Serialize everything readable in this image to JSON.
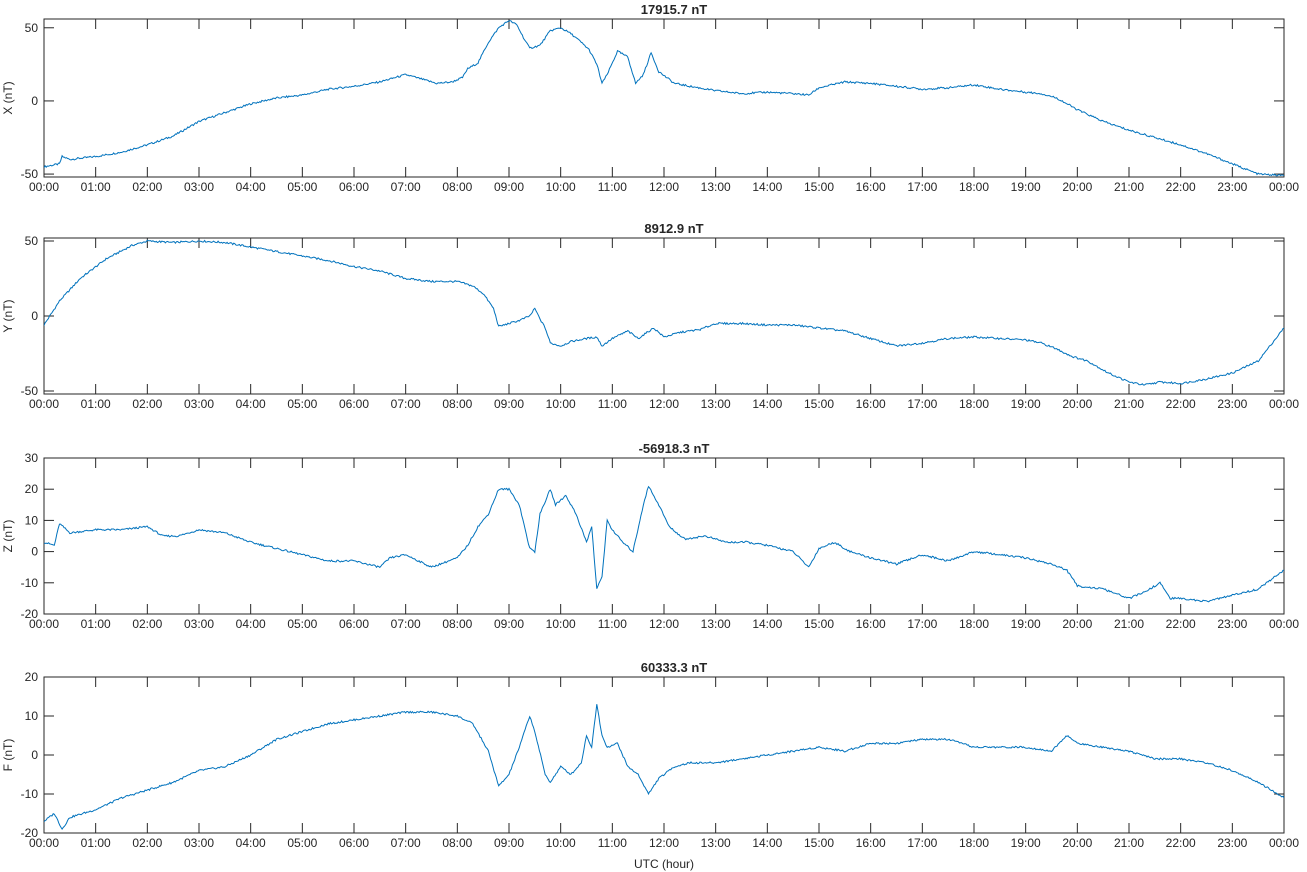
{
  "chart_data": [
    {
      "type": "line",
      "title": "17915.7 nT",
      "xlabel": "",
      "ylabel": "X (nT)",
      "xlim": [
        0,
        24
      ],
      "ylim": [
        -52,
        56
      ],
      "yticks": [
        -50,
        0,
        50
      ],
      "xticklabels": [
        "00:00",
        "01:00",
        "02:00",
        "03:00",
        "04:00",
        "05:00",
        "06:00",
        "07:00",
        "08:00",
        "09:00",
        "10:00",
        "11:00",
        "12:00",
        "13:00",
        "14:00",
        "15:00",
        "16:00",
        "17:00",
        "18:00",
        "19:00",
        "20:00",
        "21:00",
        "22:00",
        "23:00",
        "00:00"
      ],
      "grid": false,
      "color": "#0072BD",
      "series": [
        {
          "x": [
            0,
            0.3,
            0.35,
            0.5,
            1,
            1.5,
            2,
            2.5,
            3,
            3.5,
            4,
            4.5,
            5,
            5.5,
            6,
            6.5,
            7,
            7.3,
            7.6,
            7.9,
            8.1,
            8.2,
            8.4,
            8.6,
            8.8,
            9.0,
            9.15,
            9.3,
            9.4,
            9.6,
            9.8,
            10.0,
            10.2,
            10.4,
            10.55,
            10.7,
            10.8,
            10.9,
            11.1,
            11.3,
            11.45,
            11.6,
            11.75,
            11.9,
            12.2,
            12.5,
            13,
            13.5,
            14,
            14.5,
            14.8,
            15,
            15.5,
            16,
            16.5,
            17,
            17.5,
            18,
            18.5,
            19,
            19.3,
            19.6,
            20,
            20.5,
            21,
            21.5,
            22,
            22.5,
            23,
            23.5,
            24
          ],
          "y": [
            -45,
            -43,
            -38,
            -40,
            -38,
            -35,
            -30,
            -24,
            -14,
            -8,
            -2,
            2,
            4,
            8,
            10,
            13,
            18,
            15,
            12,
            13,
            16,
            22,
            26,
            40,
            50,
            55,
            52,
            42,
            36,
            38,
            48,
            50,
            46,
            40,
            35,
            25,
            12,
            18,
            34,
            30,
            12,
            18,
            33,
            20,
            12,
            10,
            7,
            5,
            6,
            5,
            4,
            9,
            13,
            12,
            10,
            8,
            9,
            11,
            8,
            6,
            5,
            2,
            -6,
            -14,
            -20,
            -25,
            -30,
            -36,
            -43,
            -50,
            -51
          ]
        }
      ]
    },
    {
      "type": "line",
      "title": "8912.9 nT",
      "xlabel": "",
      "ylabel": "Y (nT)",
      "xlim": [
        0,
        24
      ],
      "ylim": [
        -52,
        52
      ],
      "yticks": [
        -50,
        0,
        50
      ],
      "xticklabels": [
        "00:00",
        "01:00",
        "02:00",
        "03:00",
        "04:00",
        "05:00",
        "06:00",
        "07:00",
        "08:00",
        "09:00",
        "10:00",
        "11:00",
        "12:00",
        "13:00",
        "14:00",
        "15:00",
        "16:00",
        "17:00",
        "18:00",
        "19:00",
        "20:00",
        "21:00",
        "22:00",
        "23:00",
        "00:00"
      ],
      "grid": false,
      "color": "#0072BD",
      "series": [
        {
          "x": [
            0,
            0.3,
            0.7,
            1.2,
            1.7,
            2,
            2.5,
            3,
            3.5,
            4,
            4.5,
            5,
            5.5,
            6,
            6.5,
            7,
            7.5,
            8,
            8.3,
            8.5,
            8.7,
            8.8,
            9.0,
            9.2,
            9.4,
            9.5,
            9.6,
            9.7,
            9.8,
            10,
            10.2,
            10.5,
            10.7,
            10.8,
            11,
            11.3,
            11.5,
            11.8,
            12,
            12.3,
            12.7,
            13,
            13.5,
            14,
            14.5,
            15,
            15.5,
            16,
            16.5,
            17,
            17.5,
            18,
            18.5,
            19,
            19.3,
            19.6,
            19.9,
            20.2,
            20.6,
            21,
            21.3,
            21.6,
            22,
            22.5,
            23,
            23.5,
            24
          ],
          "y": [
            -6,
            10,
            25,
            38,
            47,
            50,
            49,
            50,
            49,
            46,
            43,
            40,
            37,
            33,
            30,
            25,
            23,
            23,
            20,
            15,
            5,
            -7,
            -5,
            -3,
            0,
            5,
            -2,
            -8,
            -18,
            -20,
            -17,
            -15,
            -14,
            -20,
            -15,
            -10,
            -15,
            -8,
            -14,
            -11,
            -9,
            -5,
            -5,
            -6,
            -6,
            -8,
            -10,
            -15,
            -20,
            -18,
            -15,
            -14,
            -15,
            -16,
            -18,
            -22,
            -27,
            -30,
            -38,
            -44,
            -46,
            -44,
            -45,
            -42,
            -38,
            -30,
            -8
          ]
        }
      ]
    },
    {
      "type": "line",
      "title": "-56918.3 nT",
      "xlabel": "",
      "ylabel": "Z (nT)",
      "xlim": [
        0,
        24
      ],
      "ylim": [
        -20,
        30
      ],
      "yticks": [
        -20,
        -10,
        0,
        10,
        20,
        30
      ],
      "xticklabels": [
        "00:00",
        "01:00",
        "02:00",
        "03:00",
        "04:00",
        "05:00",
        "06:00",
        "07:00",
        "08:00",
        "09:00",
        "10:00",
        "11:00",
        "12:00",
        "13:00",
        "14:00",
        "15:00",
        "16:00",
        "17:00",
        "18:00",
        "19:00",
        "20:00",
        "21:00",
        "22:00",
        "23:00",
        "00:00"
      ],
      "grid": false,
      "color": "#0072BD",
      "series": [
        {
          "x": [
            0,
            0.2,
            0.3,
            0.5,
            1,
            1.5,
            2,
            2.3,
            2.6,
            3,
            3.5,
            4,
            4.5,
            5,
            5.5,
            6,
            6.5,
            6.7,
            7,
            7.5,
            8,
            8.2,
            8.4,
            8.6,
            8.8,
            9,
            9.2,
            9.4,
            9.5,
            9.6,
            9.8,
            9.9,
            10.1,
            10.3,
            10.5,
            10.6,
            10.7,
            10.8,
            10.9,
            11.0,
            11.2,
            11.4,
            11.6,
            11.7,
            11.9,
            12.1,
            12.4,
            12.8,
            13.2,
            13.6,
            14,
            14.5,
            14.8,
            15,
            15.3,
            15.6,
            16,
            16.5,
            17,
            17.5,
            18,
            18.5,
            19,
            19.5,
            19.8,
            20,
            20.5,
            21,
            21.3,
            21.6,
            21.8,
            22,
            22.5,
            23,
            23.5,
            24
          ],
          "y": [
            3,
            2,
            9,
            6,
            7,
            7,
            8,
            5,
            5,
            7,
            6,
            3,
            1,
            -1,
            -3,
            -3,
            -5,
            -2,
            -1,
            -5,
            -2,
            2,
            8,
            12,
            20,
            20,
            15,
            1,
            0,
            12,
            20,
            15,
            18,
            12,
            3,
            8,
            -12,
            -8,
            10,
            7,
            3,
            0,
            15,
            21,
            15,
            8,
            4,
            5,
            3,
            3,
            2,
            0,
            -5,
            1,
            3,
            0,
            -2,
            -4,
            -1,
            -3,
            0,
            -1,
            -2,
            -4,
            -6,
            -11,
            -12,
            -15,
            -13,
            -10,
            -15,
            -15,
            -16,
            -14,
            -12,
            -6
          ]
        }
      ]
    },
    {
      "type": "line",
      "title": "60333.3 nT",
      "xlabel": "UTC (hour)",
      "ylabel": "F (nT)",
      "xlim": [
        0,
        24
      ],
      "ylim": [
        -20,
        20
      ],
      "yticks": [
        -20,
        -10,
        0,
        10,
        20
      ],
      "xticklabels": [
        "00:00",
        "01:00",
        "02:00",
        "03:00",
        "04:00",
        "05:00",
        "06:00",
        "07:00",
        "08:00",
        "09:00",
        "10:00",
        "11:00",
        "12:00",
        "13:00",
        "14:00",
        "15:00",
        "16:00",
        "17:00",
        "18:00",
        "19:00",
        "20:00",
        "21:00",
        "22:00",
        "23:00",
        "00:00"
      ],
      "grid": false,
      "color": "#0072BD",
      "series": [
        {
          "x": [
            0,
            0.2,
            0.35,
            0.5,
            1,
            1.5,
            2,
            2.5,
            3,
            3.5,
            4,
            4.5,
            5,
            5.5,
            6,
            6.5,
            7,
            7.5,
            8,
            8.3,
            8.6,
            8.8,
            9,
            9.2,
            9.4,
            9.5,
            9.7,
            9.8,
            10,
            10.2,
            10.4,
            10.5,
            10.6,
            10.7,
            10.8,
            10.9,
            11.1,
            11.3,
            11.5,
            11.7,
            11.9,
            12.2,
            12.5,
            13,
            13.5,
            14,
            14.5,
            15,
            15.5,
            16,
            16.5,
            17,
            17.5,
            18,
            18.5,
            19,
            19.5,
            19.8,
            20,
            20.5,
            21,
            21.5,
            22,
            22.5,
            23,
            23.5,
            24
          ],
          "y": [
            -17,
            -15,
            -19,
            -16,
            -14,
            -11,
            -9,
            -7,
            -4,
            -3,
            0,
            4,
            6,
            8,
            9,
            10,
            11,
            11,
            10,
            8,
            1,
            -8,
            -5,
            2,
            10,
            6,
            -5,
            -7,
            -3,
            -5,
            -2,
            5,
            2,
            13,
            5,
            2,
            3,
            -3,
            -5,
            -10,
            -6,
            -3,
            -2,
            -2,
            -1,
            0,
            1,
            2,
            1,
            3,
            3,
            4,
            4,
            2,
            2,
            2,
            1,
            5,
            3,
            2,
            1,
            -1,
            -1,
            -2,
            -4,
            -7,
            -11
          ]
        }
      ]
    }
  ]
}
